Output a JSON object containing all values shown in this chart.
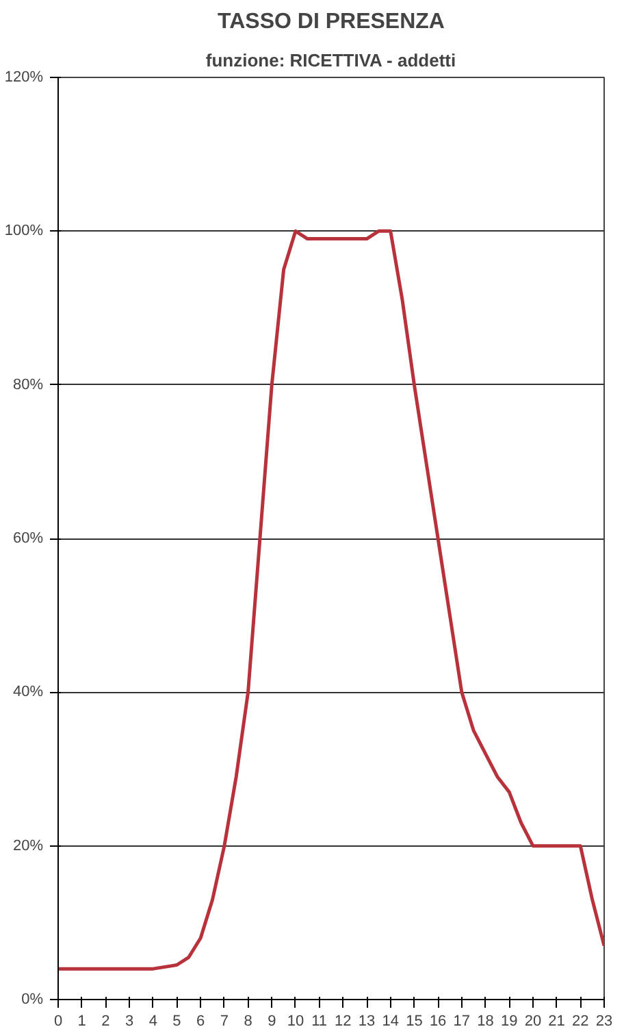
{
  "chart_data": {
    "type": "line",
    "title": "TASSO DI PRESENZA",
    "subtitle": "funzione: RICETTIVA - addetti",
    "x": [
      0,
      1,
      2,
      3,
      4,
      5,
      5.5,
      6,
      6.5,
      7,
      7.5,
      8,
      8.5,
      9,
      9.5,
      10,
      10.5,
      11,
      12,
      13,
      13.5,
      14,
      14.5,
      15,
      15.5,
      16,
      16.5,
      17,
      17.5,
      18,
      18.5,
      19,
      19.5,
      20,
      21,
      21.5,
      22,
      22.5,
      23
    ],
    "series": [
      {
        "color": "#b8323c",
        "values": [
          4,
          4,
          4,
          4,
          4,
          4.5,
          5.5,
          8,
          13,
          20,
          29,
          40,
          60,
          80,
          95,
          100,
          99,
          99,
          99,
          99,
          100,
          100,
          91,
          80,
          70,
          60,
          50,
          40,
          35,
          32,
          29,
          27,
          23,
          20,
          20,
          20,
          20,
          13,
          7
        ]
      }
    ],
    "xlim": [
      0,
      23
    ],
    "xticks": [
      0,
      1,
      2,
      3,
      4,
      5,
      6,
      7,
      8,
      9,
      10,
      11,
      12,
      13,
      14,
      15,
      16,
      17,
      18,
      19,
      20,
      21,
      22,
      23
    ],
    "ylim": [
      0,
      120
    ],
    "yticks": [
      {
        "value": 0,
        "label": "0%"
      },
      {
        "value": 20,
        "label": "20%"
      },
      {
        "value": 40,
        "label": "40%"
      },
      {
        "value": 60,
        "label": "60%"
      },
      {
        "value": 80,
        "label": "80%"
      },
      {
        "value": 100,
        "label": "100%"
      },
      {
        "value": 120,
        "label": "120%"
      }
    ],
    "grid": "y",
    "marker": "none",
    "line_style": "solid"
  }
}
